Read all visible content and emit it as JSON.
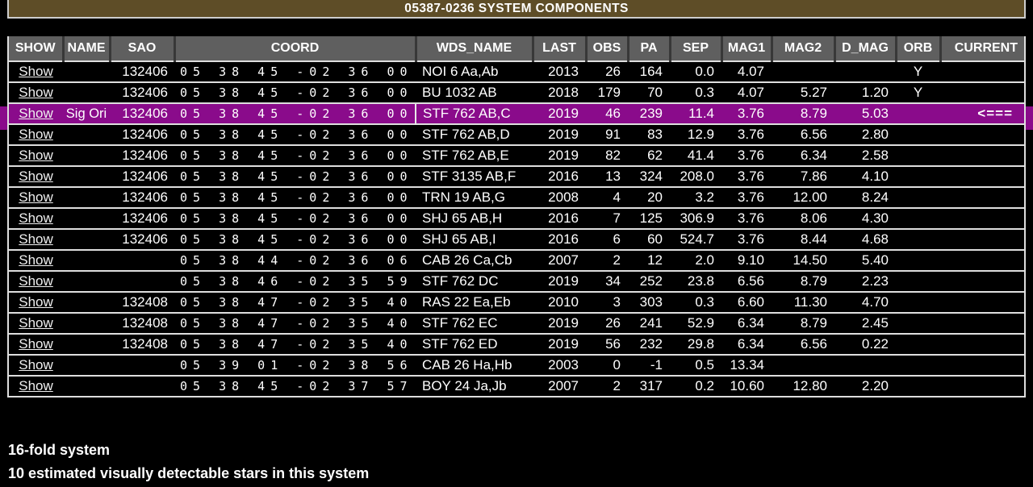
{
  "title": "05387-0236 SYSTEM COMPONENTS",
  "colors": {
    "title_bar_bg": "#5e4d27",
    "header_bg": "#5f5f5f",
    "highlight_row_bg": "#8a0b8b",
    "row_border": "#dedede",
    "page_bg": "#000000"
  },
  "table": {
    "show_label": "Show",
    "columns": [
      "SHOW",
      "NAME",
      "SAO",
      "COORD",
      "WDS_NAME",
      "LAST",
      "OBS",
      "PA",
      "SEP",
      "MAG1",
      "MAG2",
      "D_MAG",
      "ORB",
      "CURRENT"
    ],
    "rows": [
      {
        "name": "",
        "sao": "132406",
        "coord": "05 38 45 -02 36 00",
        "wds_name": "NOI 6 Aa,Ab",
        "last": "2013",
        "obs": "26",
        "pa": "164",
        "sep": "0.0",
        "mag1": "4.07",
        "mag2": "",
        "d_mag": "",
        "orb": "Y",
        "current": "",
        "highlight": false
      },
      {
        "name": "",
        "sao": "132406",
        "coord": "05 38 45 -02 36 00",
        "wds_name": "BU 1032 AB",
        "last": "2018",
        "obs": "179",
        "pa": "70",
        "sep": "0.3",
        "mag1": "4.07",
        "mag2": "5.27",
        "d_mag": "1.20",
        "orb": "Y",
        "current": "",
        "highlight": false
      },
      {
        "name": "Sig Ori",
        "sao": "132406",
        "coord": "05 38 45 -02 36 00",
        "wds_name": "STF 762 AB,C",
        "last": "2019",
        "obs": "46",
        "pa": "239",
        "sep": "11.4",
        "mag1": "3.76",
        "mag2": "8.79",
        "d_mag": "5.03",
        "orb": "",
        "current": "<===",
        "highlight": true
      },
      {
        "name": "",
        "sao": "132406",
        "coord": "05 38 45 -02 36 00",
        "wds_name": "STF 762 AB,D",
        "last": "2019",
        "obs": "91",
        "pa": "83",
        "sep": "12.9",
        "mag1": "3.76",
        "mag2": "6.56",
        "d_mag": "2.80",
        "orb": "",
        "current": "",
        "highlight": false
      },
      {
        "name": "",
        "sao": "132406",
        "coord": "05 38 45 -02 36 00",
        "wds_name": "STF 762 AB,E",
        "last": "2019",
        "obs": "82",
        "pa": "62",
        "sep": "41.4",
        "mag1": "3.76",
        "mag2": "6.34",
        "d_mag": "2.58",
        "orb": "",
        "current": "",
        "highlight": false
      },
      {
        "name": "",
        "sao": "132406",
        "coord": "05 38 45 -02 36 00",
        "wds_name": "STF 3135 AB,F",
        "last": "2016",
        "obs": "13",
        "pa": "324",
        "sep": "208.0",
        "mag1": "3.76",
        "mag2": "7.86",
        "d_mag": "4.10",
        "orb": "",
        "current": "",
        "highlight": false
      },
      {
        "name": "",
        "sao": "132406",
        "coord": "05 38 45 -02 36 00",
        "wds_name": "TRN 19 AB,G",
        "last": "2008",
        "obs": "4",
        "pa": "20",
        "sep": "3.2",
        "mag1": "3.76",
        "mag2": "12.00",
        "d_mag": "8.24",
        "orb": "",
        "current": "",
        "highlight": false
      },
      {
        "name": "",
        "sao": "132406",
        "coord": "05 38 45 -02 36 00",
        "wds_name": "SHJ 65 AB,H",
        "last": "2016",
        "obs": "7",
        "pa": "125",
        "sep": "306.9",
        "mag1": "3.76",
        "mag2": "8.06",
        "d_mag": "4.30",
        "orb": "",
        "current": "",
        "highlight": false
      },
      {
        "name": "",
        "sao": "132406",
        "coord": "05 38 45 -02 36 00",
        "wds_name": "SHJ 65 AB,I",
        "last": "2016",
        "obs": "6",
        "pa": "60",
        "sep": "524.7",
        "mag1": "3.76",
        "mag2": "8.44",
        "d_mag": "4.68",
        "orb": "",
        "current": "",
        "highlight": false
      },
      {
        "name": "",
        "sao": "",
        "coord": "05 38 44 -02 36 06",
        "wds_name": "CAB 26 Ca,Cb",
        "last": "2007",
        "obs": "2",
        "pa": "12",
        "sep": "2.0",
        "mag1": "9.10",
        "mag2": "14.50",
        "d_mag": "5.40",
        "orb": "",
        "current": "",
        "highlight": false
      },
      {
        "name": "",
        "sao": "",
        "coord": "05 38 46 -02 35 59",
        "wds_name": "STF 762 DC",
        "last": "2019",
        "obs": "34",
        "pa": "252",
        "sep": "23.8",
        "mag1": "6.56",
        "mag2": "8.79",
        "d_mag": "2.23",
        "orb": "",
        "current": "",
        "highlight": false
      },
      {
        "name": "",
        "sao": "132408",
        "coord": "05 38 47 -02 35 40",
        "wds_name": "RAS 22 Ea,Eb",
        "last": "2010",
        "obs": "3",
        "pa": "303",
        "sep": "0.3",
        "mag1": "6.60",
        "mag2": "11.30",
        "d_mag": "4.70",
        "orb": "",
        "current": "",
        "highlight": false
      },
      {
        "name": "",
        "sao": "132408",
        "coord": "05 38 47 -02 35 40",
        "wds_name": "STF 762 EC",
        "last": "2019",
        "obs": "26",
        "pa": "241",
        "sep": "52.9",
        "mag1": "6.34",
        "mag2": "8.79",
        "d_mag": "2.45",
        "orb": "",
        "current": "",
        "highlight": false
      },
      {
        "name": "",
        "sao": "132408",
        "coord": "05 38 47 -02 35 40",
        "wds_name": "STF 762 ED",
        "last": "2019",
        "obs": "56",
        "pa": "232",
        "sep": "29.8",
        "mag1": "6.34",
        "mag2": "6.56",
        "d_mag": "0.22",
        "orb": "",
        "current": "",
        "highlight": false
      },
      {
        "name": "",
        "sao": "",
        "coord": "05 39 01 -02 38 56",
        "wds_name": "CAB 26 Ha,Hb",
        "last": "2003",
        "obs": "0",
        "pa": "-1",
        "sep": "0.5",
        "mag1": "13.34",
        "mag2": "",
        "d_mag": "",
        "orb": "",
        "current": "",
        "highlight": false
      },
      {
        "name": "",
        "sao": "",
        "coord": "05 38 45 -02 37 57",
        "wds_name": "BOY 24 Ja,Jb",
        "last": "2007",
        "obs": "2",
        "pa": "317",
        "sep": "0.2",
        "mag1": "10.60",
        "mag2": "12.80",
        "d_mag": "2.20",
        "orb": "",
        "current": "",
        "highlight": false
      }
    ]
  },
  "footer": {
    "line1": "16-fold system",
    "line2": "10 estimated visually detectable stars in this system"
  }
}
